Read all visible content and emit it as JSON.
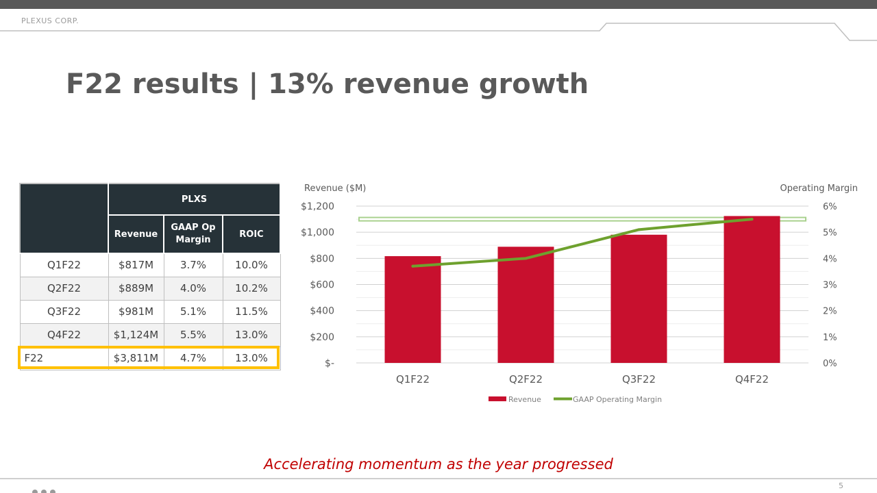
{
  "header": {
    "company": "PLEXUS CORP."
  },
  "slide": {
    "title": "F22 results | 13% revenue growth",
    "page_number": "5"
  },
  "table": {
    "group_header": "PLXS",
    "columns": [
      "Revenue",
      "GAAP Op Margin",
      "ROIC"
    ],
    "rows": [
      {
        "period": "Q1F22",
        "revenue": "$817M",
        "margin": "3.7%",
        "roic": "10.0%"
      },
      {
        "period": "Q2F22",
        "revenue": "$889M",
        "margin": "4.0%",
        "roic": "10.2%"
      },
      {
        "period": "Q3F22",
        "revenue": "$981M",
        "margin": "5.1%",
        "roic": "11.5%"
      },
      {
        "period": "Q4F22",
        "revenue": "$1,124M",
        "margin": "5.5%",
        "roic": "13.0%"
      },
      {
        "period": "F22",
        "revenue": "$3,811M",
        "margin": "4.7%",
        "roic": "13.0%"
      }
    ],
    "highlight_color": "#ffc000"
  },
  "chart_data": {
    "type": "bar",
    "categories": [
      "Q1F22",
      "Q2F22",
      "Q3F22",
      "Q4F22"
    ],
    "series": [
      {
        "name": "Revenue",
        "type": "bar",
        "axis": "left",
        "color": "#c8102e",
        "values": [
          817,
          889,
          981,
          1124
        ]
      },
      {
        "name": "GAAP Operating Margin",
        "type": "line",
        "axis": "right",
        "color": "#6ea12e",
        "values": [
          3.7,
          4.0,
          5.1,
          5.5
        ]
      }
    ],
    "ylabel": "Revenue ($M)",
    "y2label": "Operating Margin",
    "ylim": [
      0,
      1200
    ],
    "y2lim": [
      0,
      6
    ],
    "yticks": [
      "$-",
      "$200",
      "$400",
      "$600",
      "$800",
      "$1,000",
      "$1,200"
    ],
    "y2ticks": [
      "0%",
      "1%",
      "2%",
      "3%",
      "4%",
      "5%",
      "6%"
    ],
    "target_band": {
      "value": 5.5,
      "axis": "right",
      "color": "#a9d18e"
    },
    "grid": true,
    "legend": "bottom"
  },
  "tagline": "Accelerating momentum as the year progressed"
}
